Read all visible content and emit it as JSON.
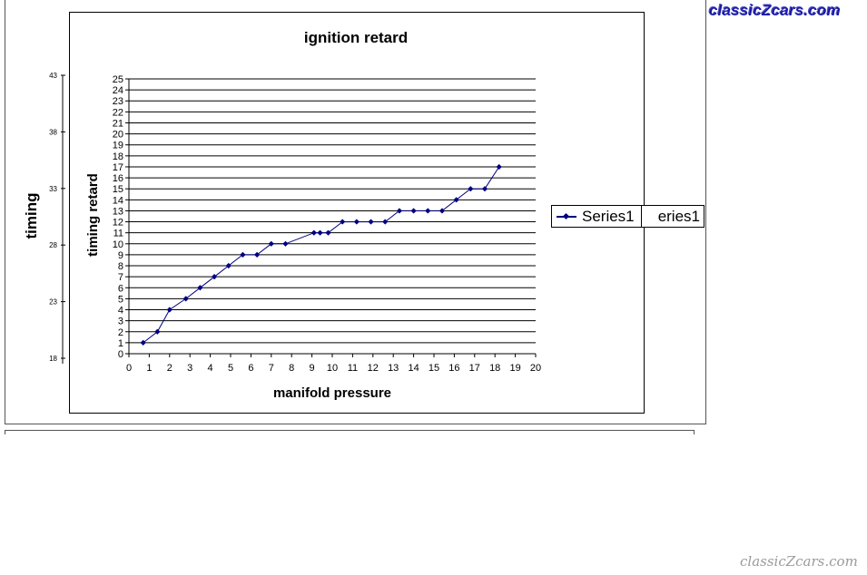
{
  "chart_data": {
    "type": "line",
    "title": "ignition retard",
    "xlabel": "manifold pressure",
    "ylabel": "timing retard",
    "xlim": [
      0,
      20
    ],
    "ylim": [
      0,
      25
    ],
    "x_ticks": [
      "0",
      "1",
      "2",
      "3",
      "4",
      "5",
      "6",
      "7",
      "8",
      "9",
      "10",
      "11",
      "12",
      "13",
      "14",
      "15",
      "16",
      "17",
      "18",
      "19",
      "20"
    ],
    "y_ticks": [
      "0",
      "1",
      "2",
      "3",
      "4",
      "5",
      "6",
      "7",
      "8",
      "9",
      "10",
      "11",
      "12",
      "13",
      "14",
      "15",
      "16",
      "17",
      "18",
      "19",
      "20",
      "21",
      "22",
      "23",
      "24",
      "25"
    ],
    "grid": true,
    "legend_position": "right",
    "series": [
      {
        "name": "Series1",
        "color": "#00007f",
        "points": [
          [
            0.7,
            1
          ],
          [
            1.4,
            2
          ],
          [
            2.0,
            4
          ],
          [
            2.8,
            5
          ],
          [
            3.5,
            6
          ],
          [
            4.2,
            7
          ],
          [
            4.9,
            8
          ],
          [
            5.6,
            9
          ],
          [
            6.3,
            9
          ],
          [
            7.0,
            10
          ],
          [
            7.7,
            10
          ],
          [
            9.1,
            11
          ],
          [
            9.4,
            11
          ],
          [
            9.8,
            11
          ],
          [
            10.5,
            12
          ],
          [
            11.2,
            12
          ],
          [
            11.9,
            12
          ],
          [
            12.6,
            12
          ],
          [
            13.3,
            13
          ],
          [
            14.0,
            13
          ],
          [
            14.7,
            13
          ],
          [
            15.4,
            13
          ],
          [
            16.1,
            14
          ],
          [
            16.8,
            15
          ],
          [
            17.5,
            15
          ],
          [
            18.2,
            17
          ]
        ]
      }
    ]
  },
  "secondary_axis": {
    "ylabel": "timing",
    "ticks": [
      "18",
      "23",
      "28",
      "33",
      "38",
      "43"
    ],
    "ylim": [
      18,
      43
    ]
  },
  "legend": {
    "label": "Series1",
    "ghost_label": "eries1"
  },
  "watermarks": {
    "top": "classicZcars.com",
    "bottom": "classicZcars.com"
  }
}
